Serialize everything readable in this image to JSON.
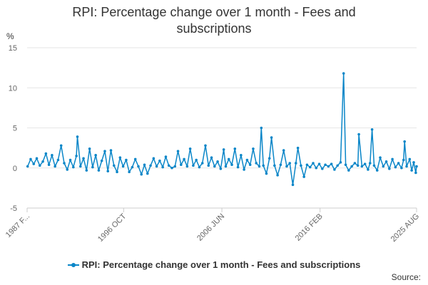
{
  "title_lines": [
    "RPI: Percentage change over 1 month - Fees and",
    "subscriptions"
  ],
  "y_unit": "%",
  "source_label": "Source:",
  "colors": {
    "series": "#0a86c8",
    "grid": "#e6e6e6",
    "axis": "#cccccc"
  },
  "chart_data": {
    "type": "line",
    "title": "RPI: Percentage change over 1 month - Fees and subscriptions",
    "ylabel": "%",
    "ylim": [
      -5,
      15
    ],
    "yticks": [
      -5,
      0,
      5,
      10,
      15
    ],
    "grid": true,
    "legend": "bottom",
    "x_range": [
      1987.25,
      2025.58
    ],
    "x_tick_labels": [
      {
        "label": "1987 F...",
        "x": 1987.08
      },
      {
        "label": "1996 OCT",
        "x": 1996.75
      },
      {
        "label": "2006 JUN",
        "x": 2006.42
      },
      {
        "label": "2016 FEB",
        "x": 2016.08
      },
      {
        "label": "2025 AUG",
        "x": 2025.58
      }
    ],
    "series": [
      {
        "name": "RPI: Percentage change over 1 month - Fees and subscriptions",
        "points": [
          [
            1987.3,
            0.2
          ],
          [
            1987.6,
            1.1
          ],
          [
            1987.9,
            0.5
          ],
          [
            1988.2,
            1.2
          ],
          [
            1988.5,
            0.3
          ],
          [
            1988.8,
            0.8
          ],
          [
            1989.1,
            1.8
          ],
          [
            1989.4,
            0.4
          ],
          [
            1989.7,
            1.6
          ],
          [
            1990.0,
            0.2
          ],
          [
            1990.3,
            1.0
          ],
          [
            1990.6,
            2.8
          ],
          [
            1990.9,
            0.6
          ],
          [
            1991.2,
            -0.2
          ],
          [
            1991.5,
            1.0
          ],
          [
            1991.8,
            0.1
          ],
          [
            1992.1,
            1.5
          ],
          [
            1992.2,
            3.9
          ],
          [
            1992.5,
            0.2
          ],
          [
            1992.8,
            1.2
          ],
          [
            1993.1,
            -0.3
          ],
          [
            1993.4,
            2.4
          ],
          [
            1993.7,
            0.1
          ],
          [
            1994.0,
            1.6
          ],
          [
            1994.3,
            -0.3
          ],
          [
            1994.6,
            0.9
          ],
          [
            1994.9,
            2.1
          ],
          [
            1995.2,
            -0.4
          ],
          [
            1995.5,
            2.2
          ],
          [
            1995.8,
            0.3
          ],
          [
            1996.1,
            -0.5
          ],
          [
            1996.4,
            1.3
          ],
          [
            1996.7,
            0.2
          ],
          [
            1997.0,
            1.0
          ],
          [
            1997.3,
            -0.5
          ],
          [
            1997.6,
            0.1
          ],
          [
            1997.9,
            1.1
          ],
          [
            1998.2,
            0.2
          ],
          [
            1998.5,
            -0.8
          ],
          [
            1998.8,
            0.4
          ],
          [
            1999.1,
            -0.7
          ],
          [
            1999.4,
            0.3
          ],
          [
            1999.7,
            1.2
          ],
          [
            2000.0,
            0.2
          ],
          [
            2000.3,
            0.9
          ],
          [
            2000.6,
            0.1
          ],
          [
            2000.9,
            1.4
          ],
          [
            2001.2,
            0.3
          ],
          [
            2001.5,
            0.0
          ],
          [
            2001.8,
            0.2
          ],
          [
            2002.1,
            2.1
          ],
          [
            2002.4,
            0.4
          ],
          [
            2002.7,
            1.1
          ],
          [
            2003.0,
            0.2
          ],
          [
            2003.3,
            2.4
          ],
          [
            2003.6,
            0.3
          ],
          [
            2003.9,
            1.0
          ],
          [
            2004.2,
            0.1
          ],
          [
            2004.5,
            0.6
          ],
          [
            2004.8,
            2.8
          ],
          [
            2005.1,
            0.3
          ],
          [
            2005.4,
            1.3
          ],
          [
            2005.7,
            0.2
          ],
          [
            2006.0,
            0.8
          ],
          [
            2006.3,
            -0.1
          ],
          [
            2006.6,
            2.3
          ],
          [
            2006.8,
            0.2
          ],
          [
            2007.1,
            1.1
          ],
          [
            2007.4,
            0.4
          ],
          [
            2007.7,
            2.4
          ],
          [
            2008.0,
            0.1
          ],
          [
            2008.3,
            1.6
          ],
          [
            2008.6,
            -0.2
          ],
          [
            2008.9,
            1.0
          ],
          [
            2009.2,
            0.4
          ],
          [
            2009.5,
            2.4
          ],
          [
            2009.8,
            0.6
          ],
          [
            2010.1,
            0.2
          ],
          [
            2010.3,
            5.0
          ],
          [
            2010.5,
            0.3
          ],
          [
            2010.8,
            -0.7
          ],
          [
            2011.1,
            1.2
          ],
          [
            2011.3,
            3.8
          ],
          [
            2011.6,
            0.3
          ],
          [
            2011.9,
            -0.9
          ],
          [
            2012.2,
            0.4
          ],
          [
            2012.5,
            2.2
          ],
          [
            2012.8,
            0.2
          ],
          [
            2013.1,
            0.6
          ],
          [
            2013.4,
            -2.1
          ],
          [
            2013.7,
            0.6
          ],
          [
            2013.9,
            2.5
          ],
          [
            2014.2,
            0.3
          ],
          [
            2014.5,
            -1.1
          ],
          [
            2014.8,
            0.4
          ],
          [
            2015.1,
            0.1
          ],
          [
            2015.4,
            0.6
          ],
          [
            2015.7,
            0.0
          ],
          [
            2016.0,
            0.5
          ],
          [
            2016.3,
            -0.1
          ],
          [
            2016.6,
            0.4
          ],
          [
            2016.9,
            0.2
          ],
          [
            2017.2,
            0.5
          ],
          [
            2017.5,
            -0.2
          ],
          [
            2017.8,
            0.3
          ],
          [
            2018.1,
            0.7
          ],
          [
            2018.4,
            11.8
          ],
          [
            2018.6,
            0.4
          ],
          [
            2018.9,
            -0.3
          ],
          [
            2019.2,
            0.2
          ],
          [
            2019.5,
            0.6
          ],
          [
            2019.8,
            0.3
          ],
          [
            2019.9,
            4.2
          ],
          [
            2020.2,
            0.2
          ],
          [
            2020.5,
            0.5
          ],
          [
            2020.8,
            -0.2
          ],
          [
            2021.0,
            0.6
          ],
          [
            2021.2,
            4.8
          ],
          [
            2021.4,
            0.3
          ],
          [
            2021.7,
            -0.3
          ],
          [
            2022.0,
            1.3
          ],
          [
            2022.3,
            0.2
          ],
          [
            2022.6,
            0.8
          ],
          [
            2022.9,
            -0.1
          ],
          [
            2023.2,
            1.1
          ],
          [
            2023.5,
            0.1
          ],
          [
            2023.8,
            0.6
          ],
          [
            2024.1,
            0.0
          ],
          [
            2024.3,
            1.0
          ],
          [
            2024.4,
            3.3
          ],
          [
            2024.6,
            0.2
          ],
          [
            2024.9,
            1.1
          ],
          [
            2025.1,
            -0.3
          ],
          [
            2025.3,
            0.7
          ],
          [
            2025.5,
            -0.6
          ],
          [
            2025.58,
            0.2
          ]
        ]
      }
    ]
  }
}
